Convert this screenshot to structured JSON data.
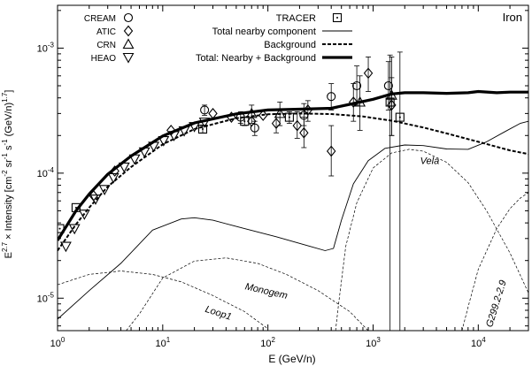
{
  "chart_data": {
    "type": "line",
    "title": "Iron",
    "xlabel": "E (GeV/n)",
    "ylabel": "E^2.7 × Intensity [cm^-2 sr^-1 s^-1 (GeV/n)^1.7]",
    "x_scale": "log",
    "y_scale": "log",
    "xlim": [
      1,
      30000
    ],
    "ylim": [
      5.5e-06,
      0.0022
    ],
    "x_ticks": [
      {
        "value": 1,
        "label": "10^0"
      },
      {
        "value": 10,
        "label": "10^1"
      },
      {
        "value": 100,
        "label": "10^2"
      },
      {
        "value": 1000,
        "label": "10^3"
      },
      {
        "value": 10000,
        "label": "10^4"
      }
    ],
    "y_ticks": [
      {
        "value": 1e-05,
        "label": "10^-5"
      },
      {
        "value": 0.0001,
        "label": "10^-4"
      },
      {
        "value": 0.001,
        "label": "10^-3"
      }
    ],
    "legend": [
      {
        "label": "CREAM",
        "marker": "circle"
      },
      {
        "label": "ATIC",
        "marker": "diamond"
      },
      {
        "label": "CRN",
        "marker": "triangle-up"
      },
      {
        "label": "HEAO",
        "marker": "triangle-down"
      },
      {
        "label": "TRACER",
        "marker": "square-dot"
      },
      {
        "label": "Total nearby component",
        "style": "solid-thin"
      },
      {
        "label": "Background",
        "style": "dashed-medium"
      },
      {
        "label": "Total: Nearby + Background",
        "style": "solid-thick"
      }
    ],
    "annotations": [
      "Vela",
      "Monogem",
      "Loop1",
      "G299.2-2.9"
    ],
    "curves": [
      {
        "name": "Total: Nearby + Background",
        "style": "solid-thick",
        "points": [
          [
            1,
            2.9e-05
          ],
          [
            1.5,
            5e-05
          ],
          [
            2,
            6.8e-05
          ],
          [
            3,
            9.8e-05
          ],
          [
            5,
            0.000137
          ],
          [
            10,
            0.000198
          ],
          [
            20,
            0.000252
          ],
          [
            50,
            0.000298
          ],
          [
            100,
            0.00032
          ],
          [
            200,
            0.000325
          ],
          [
            400,
            0.00033
          ],
          [
            600,
            0.000355
          ],
          [
            1000,
            0.00039
          ],
          [
            1500,
            0.00043
          ],
          [
            2000,
            0.00044
          ],
          [
            3000,
            0.00044
          ],
          [
            5000,
            0.000435
          ],
          [
            8000,
            0.00044
          ],
          [
            10000,
            0.00045
          ],
          [
            15000,
            0.00044
          ],
          [
            20000,
            0.000445
          ],
          [
            30000,
            0.000445
          ]
        ]
      },
      {
        "name": "Background",
        "style": "dashed-medium",
        "points": [
          [
            1,
            2.4e-05
          ],
          [
            1.5,
            3.9e-05
          ],
          [
            2,
            5.3e-05
          ],
          [
            3,
            7.8e-05
          ],
          [
            5,
            0.000112
          ],
          [
            10,
            0.00017
          ],
          [
            20,
            0.000225
          ],
          [
            50,
            0.000275
          ],
          [
            100,
            0.000296
          ],
          [
            200,
            0.0003
          ],
          [
            400,
            0.000297
          ],
          [
            800,
            0.000284
          ],
          [
            1500,
            0.000263
          ],
          [
            3000,
            0.000232
          ],
          [
            5000,
            0.000208
          ],
          [
            10000,
            0.000178
          ],
          [
            20000,
            0.000152
          ],
          [
            30000,
            0.000142
          ]
        ]
      },
      {
        "name": "Total nearby component",
        "style": "solid-thin",
        "points": [
          [
            1,
            6.8e-06
          ],
          [
            2,
            1.15e-05
          ],
          [
            4,
            1.9e-05
          ],
          [
            8,
            3.5e-05
          ],
          [
            15,
            4.3e-05
          ],
          [
            20,
            4.4e-05
          ],
          [
            30,
            4.2e-05
          ],
          [
            60,
            3.6e-05
          ],
          [
            120,
            3.1e-05
          ],
          [
            250,
            2.6e-05
          ],
          [
            350,
            2.4e-05
          ],
          [
            420,
            2.5e-05
          ],
          [
            500,
            4.2e-05
          ],
          [
            650,
            8.2e-05
          ],
          [
            900,
            0.000126
          ],
          [
            1300,
            0.000158
          ],
          [
            2000,
            0.000168
          ],
          [
            3000,
            0.000166
          ],
          [
            5000,
            0.000156
          ],
          [
            8000,
            0.000155
          ],
          [
            12000,
            0.000178
          ],
          [
            18000,
            0.000215
          ],
          [
            25000,
            0.00025
          ],
          [
            30000,
            0.00026
          ]
        ]
      },
      {
        "name": "Vela",
        "style": "dashed-thin",
        "points": [
          [
            440,
            5.5e-06
          ],
          [
            470,
            9e-06
          ],
          [
            550,
            2.6e-05
          ],
          [
            700,
            5.8e-05
          ],
          [
            1000,
            0.00011
          ],
          [
            1500,
            0.000145
          ],
          [
            2200,
            0.000155
          ],
          [
            3000,
            0.00015
          ],
          [
            5000,
            0.000122
          ],
          [
            8000,
            8.4e-05
          ],
          [
            12000,
            5e-05
          ],
          [
            20000,
            2.3e-05
          ],
          [
            30000,
            1.1e-05
          ]
        ]
      },
      {
        "name": "Monogem",
        "style": "dashed-thin",
        "points": [
          [
            4.5,
            5.5e-06
          ],
          [
            6,
            7.5e-06
          ],
          [
            10,
            1.45e-05
          ],
          [
            20,
            1.98e-05
          ],
          [
            40,
            2.1e-05
          ],
          [
            80,
            1.9e-05
          ],
          [
            150,
            1.55e-05
          ],
          [
            300,
            1.15e-05
          ],
          [
            600,
            7.8e-06
          ],
          [
            900,
            5.5e-06
          ]
        ]
      },
      {
        "name": "Loop1",
        "style": "dashed-thin",
        "points": [
          [
            1,
            1.28e-05
          ],
          [
            2,
            1.55e-05
          ],
          [
            4,
            1.65e-05
          ],
          [
            8,
            1.55e-05
          ],
          [
            15,
            1.35e-05
          ],
          [
            30,
            1.05e-05
          ],
          [
            60,
            7.8e-06
          ],
          [
            100,
            5.7e-06
          ]
        ]
      },
      {
        "name": "G299.2-2.9",
        "style": "dashed-thin",
        "points": [
          [
            7000,
            5.5e-06
          ],
          [
            8000,
            8.5e-06
          ],
          [
            10000,
            1.7e-05
          ],
          [
            15000,
            3.6e-05
          ],
          [
            20000,
            5.2e-05
          ],
          [
            25000,
            6.3e-05
          ],
          [
            30000,
            7e-05
          ]
        ]
      }
    ],
    "series": [
      {
        "name": "CREAM",
        "marker": "circle",
        "points": [
          {
            "x": 25,
            "y": 0.00032,
            "lo": 0.00029,
            "hi": 0.00035
          },
          {
            "x": 55,
            "y": 0.00028,
            "lo": 0.00025,
            "hi": 0.00031
          },
          {
            "x": 75,
            "y": 0.00023,
            "lo": 0.0002,
            "hi": 0.00026
          },
          {
            "x": 220,
            "y": 0.00029,
            "lo": 0.00024,
            "hi": 0.00036
          },
          {
            "x": 400,
            "y": 0.00041,
            "lo": 0.00032,
            "hi": 0.00052
          },
          {
            "x": 700,
            "y": 0.0005,
            "lo": 0.00035,
            "hi": 0.00072
          },
          {
            "x": 1400,
            "y": 0.0005,
            "lo": 0.00032,
            "hi": 0.00078
          }
        ]
      },
      {
        "name": "ATIC",
        "marker": "diamond",
        "points": [
          {
            "x": 2.2,
            "y": 6.6e-05
          },
          {
            "x": 3.5,
            "y": 0.000104
          },
          {
            "x": 12,
            "y": 0.00022
          },
          {
            "x": 30,
            "y": 0.0003
          },
          {
            "x": 45,
            "y": 0.00028
          },
          {
            "x": 70,
            "y": 0.00026
          },
          {
            "x": 90,
            "y": 0.00029
          },
          {
            "x": 120,
            "y": 0.00025,
            "lo": 0.00021,
            "hi": 0.0003
          },
          {
            "x": 190,
            "y": 0.00024,
            "lo": 0.00019,
            "hi": 0.00031
          },
          {
            "x": 220,
            "y": 0.00021,
            "lo": 0.00016,
            "hi": 0.00028
          },
          {
            "x": 240,
            "y": 0.00032,
            "lo": 0.00026,
            "hi": 0.00038
          },
          {
            "x": 400,
            "y": 0.00015,
            "lo": 9.5e-05,
            "hi": 0.00024
          },
          {
            "x": 650,
            "y": 0.00037,
            "lo": 0.00026,
            "hi": 0.00052
          },
          {
            "x": 900,
            "y": 0.00063,
            "lo": 0.00045,
            "hi": 0.00085
          },
          {
            "x": 1500,
            "y": 0.00035,
            "lo": 0.0002,
            "hi": 0.00058
          }
        ]
      },
      {
        "name": "CRN",
        "marker": "triangle-up",
        "points": [
          {
            "x": 70,
            "y": 0.0003,
            "lo": 0.00025,
            "hi": 0.00035
          },
          {
            "x": 130,
            "y": 0.0003,
            "lo": 0.00024,
            "hi": 0.00037
          },
          {
            "x": 750,
            "y": 0.00037,
            "lo": 0.00022,
            "hi": 0.0006
          },
          {
            "x": 1500,
            "y": 0.00042,
            "lo": 0.0002,
            "hi": 0.00085
          }
        ]
      },
      {
        "name": "HEAO",
        "marker": "triangle-down",
        "points": [
          {
            "x": 1.2,
            "y": 2.6e-05
          },
          {
            "x": 1.45,
            "y": 3.6e-05
          },
          {
            "x": 1.8,
            "y": 4.7e-05
          },
          {
            "x": 2.3,
            "y": 6.2e-05
          },
          {
            "x": 2.8,
            "y": 7.4e-05
          },
          {
            "x": 3.4,
            "y": 9.2e-05
          },
          {
            "x": 4.3,
            "y": 0.000112
          },
          {
            "x": 5.4,
            "y": 0.00013
          },
          {
            "x": 6.7,
            "y": 0.000148
          },
          {
            "x": 8.2,
            "y": 0.000164
          },
          {
            "x": 10.2,
            "y": 0.000182
          },
          {
            "x": 12.8,
            "y": 0.0002
          },
          {
            "x": 16,
            "y": 0.000218
          },
          {
            "x": 20,
            "y": 0.000236
          },
          {
            "x": 25,
            "y": 0.000256
          }
        ]
      },
      {
        "name": "TRACER",
        "marker": "square-dot",
        "points": [
          {
            "x": 1.05,
            "y": 3.6e-05
          },
          {
            "x": 1.5,
            "y": 5.3e-05
          },
          {
            "x": 24,
            "y": 0.000225,
            "lo": 0.00021,
            "hi": 0.00024
          },
          {
            "x": 60,
            "y": 0.00026,
            "lo": 0.00024,
            "hi": 0.00028
          },
          {
            "x": 160,
            "y": 0.00028,
            "lo": 0.00025,
            "hi": 0.00031
          },
          {
            "x": 1450,
            "y": 0.00037,
            "lo": 5.5e-06,
            "hi": 0.00088
          },
          {
            "x": 1800,
            "y": 0.00028,
            "lo": 5.5e-06,
            "hi": 0.00093
          }
        ]
      }
    ]
  }
}
